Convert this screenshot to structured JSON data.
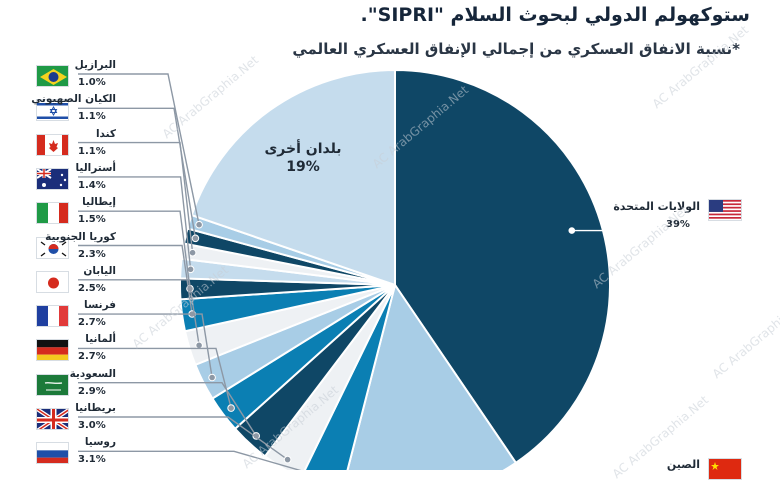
{
  "header": {
    "title_line": "ستوكهولم الدولي لبحوث السلام \"SIPRI\".",
    "subtitle": "*نسبة الانفاق العسكري من إجمالي الإنفاق العسكري العالمي"
  },
  "watermark": "AC ArabGraphia.Net",
  "chart_data": {
    "type": "pie",
    "title": "",
    "unit": "%",
    "slices": [
      {
        "label": "الولايات المتحدة",
        "value": 39,
        "display": "39%",
        "color": "#0f4766"
      },
      {
        "label": "الصين",
        "value": 13,
        "display": "",
        "color": "#a8cde6"
      },
      {
        "label": "روسيا",
        "value": 3.1,
        "display": "3.1%",
        "color": "#0b7fb3"
      },
      {
        "label": "بريطانيا",
        "value": 3.0,
        "display": "3.0%",
        "color": "#eef1f4"
      },
      {
        "label": "السعودية",
        "value": 2.9,
        "display": "2.9%",
        "color": "#0f4766"
      },
      {
        "label": "ألمانيا",
        "value": 2.7,
        "display": "2.7%",
        "color": "#0b7fb3"
      },
      {
        "label": "فرنسا",
        "value": 2.7,
        "display": "2.7%",
        "color": "#a8cde6"
      },
      {
        "label": "اليابان",
        "value": 2.5,
        "display": "2.5%",
        "color": "#eef1f4"
      },
      {
        "label": "كوريا الجنوبية",
        "value": 2.3,
        "display": "2.3%",
        "color": "#0b7fb3"
      },
      {
        "label": "إيطاليا",
        "value": 1.5,
        "display": "1.5%",
        "color": "#0f4766"
      },
      {
        "label": "أستراليا",
        "value": 1.4,
        "display": "1.4%",
        "color": "#c5dced"
      },
      {
        "label": "كندا",
        "value": 1.1,
        "display": "1.1%",
        "color": "#eef1f4"
      },
      {
        "label": "الكيان الصهيوني",
        "value": 1.1,
        "display": "1.1%",
        "color": "#0f4766"
      },
      {
        "label": "البرازيل",
        "value": 1.0,
        "display": "1.0%",
        "color": "#a8cde6"
      },
      {
        "label": "بلدان أخرى",
        "value": 19,
        "display": "19%",
        "color": "#c5dced"
      }
    ],
    "callouts": [
      {
        "label": "البرازيل",
        "display": "1.0%",
        "flag": "brazil"
      },
      {
        "label": "الكيان الصهيوني",
        "display": "1.1%",
        "flag": "israel"
      },
      {
        "label": "كندا",
        "display": "1.1%",
        "flag": "canada"
      },
      {
        "label": "أستراليا",
        "display": "1.4%",
        "flag": "australia"
      },
      {
        "label": "إيطاليا",
        "display": "1.5%",
        "flag": "italy"
      },
      {
        "label": "كوريا الجنوبية",
        "display": "2.3%",
        "flag": "south-korea"
      },
      {
        "label": "اليابان",
        "display": "2.5%",
        "flag": "japan"
      },
      {
        "label": "فرنسا",
        "display": "2.7%",
        "flag": "france"
      },
      {
        "label": "ألمانيا",
        "display": "2.7%",
        "flag": "germany"
      },
      {
        "label": "السعودية",
        "display": "2.9%",
        "flag": "saudi"
      },
      {
        "label": "بريطانيا",
        "display": "3.0%",
        "flag": "uk"
      },
      {
        "label": "روسيا",
        "display": "3.1%",
        "flag": "russia"
      }
    ],
    "us_callout": {
      "label": "الولايات المتحدة",
      "display": "39%",
      "flag": "usa"
    },
    "other_callout": {
      "label": "بلدان أخرى",
      "display": "19%"
    },
    "china_callout": {
      "label": "الصين",
      "flag": "china"
    }
  }
}
